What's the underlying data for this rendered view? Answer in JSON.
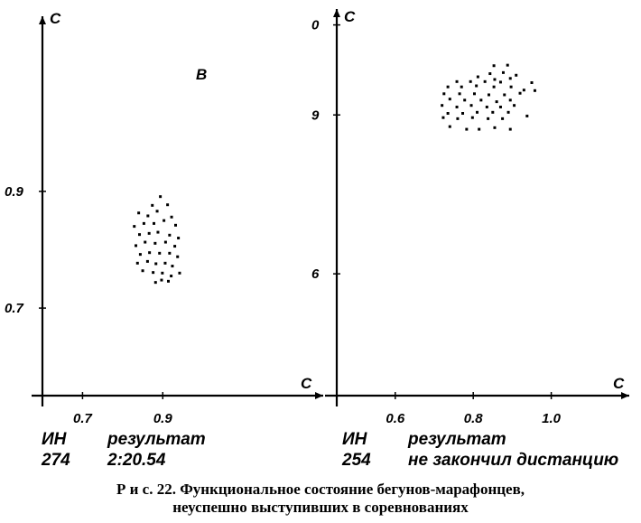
{
  "chart_data": [
    {
      "type": "scatter",
      "panel": "B",
      "xlabel": "C",
      "ylabel": "C",
      "xticks": [
        "0.7",
        "0.9"
      ],
      "yticks": [
        "0.7",
        "0.9"
      ],
      "xlim": [
        0.6,
        1.3
      ],
      "ylim": [
        0.55,
        1.2
      ],
      "points": [
        [
          0.874,
          0.876
        ],
        [
          0.894,
          0.891
        ],
        [
          0.912,
          0.877
        ],
        [
          0.84,
          0.863
        ],
        [
          0.863,
          0.858
        ],
        [
          0.886,
          0.866
        ],
        [
          0.922,
          0.856
        ],
        [
          0.829,
          0.84
        ],
        [
          0.853,
          0.845
        ],
        [
          0.878,
          0.845
        ],
        [
          0.903,
          0.85
        ],
        [
          0.932,
          0.842
        ],
        [
          0.842,
          0.826
        ],
        [
          0.866,
          0.828
        ],
        [
          0.888,
          0.83
        ],
        [
          0.917,
          0.825
        ],
        [
          0.939,
          0.82
        ],
        [
          0.833,
          0.807
        ],
        [
          0.856,
          0.813
        ],
        [
          0.881,
          0.811
        ],
        [
          0.907,
          0.813
        ],
        [
          0.93,
          0.806
        ],
        [
          0.844,
          0.792
        ],
        [
          0.867,
          0.795
        ],
        [
          0.892,
          0.794
        ],
        [
          0.917,
          0.794
        ],
        [
          0.937,
          0.788
        ],
        [
          0.837,
          0.777
        ],
        [
          0.862,
          0.78
        ],
        [
          0.883,
          0.776
        ],
        [
          0.906,
          0.777
        ],
        [
          0.924,
          0.772
        ],
        [
          0.85,
          0.764
        ],
        [
          0.876,
          0.761
        ],
        [
          0.899,
          0.76
        ],
        [
          0.921,
          0.755
        ],
        [
          0.942,
          0.76
        ],
        [
          0.882,
          0.744
        ],
        [
          0.897,
          0.748
        ],
        [
          0.914,
          0.746
        ]
      ]
    },
    {
      "type": "scatter",
      "xlabel": "C",
      "ylabel": "C",
      "xticks": [
        "0.6",
        "0.8",
        "1.0"
      ],
      "yticks": [
        "6",
        "9",
        "0"
      ],
      "xlim": [
        0.45,
        1.2
      ],
      "ylim": [
        3.7,
        11.0
      ],
      "points": [
        [
          0.853,
          9.93
        ],
        [
          0.888,
          9.94
        ],
        [
          0.843,
          9.78
        ],
        [
          0.877,
          9.8
        ],
        [
          0.91,
          9.75
        ],
        [
          0.812,
          9.72
        ],
        [
          0.855,
          9.67
        ],
        [
          0.895,
          9.69
        ],
        [
          0.758,
          9.63
        ],
        [
          0.793,
          9.63
        ],
        [
          0.83,
          9.63
        ],
        [
          0.87,
          9.62
        ],
        [
          0.95,
          9.61
        ],
        [
          0.735,
          9.53
        ],
        [
          0.77,
          9.53
        ],
        [
          0.808,
          9.55
        ],
        [
          0.853,
          9.53
        ],
        [
          0.897,
          9.53
        ],
        [
          0.93,
          9.47
        ],
        [
          0.958,
          9.46
        ],
        [
          0.725,
          9.4
        ],
        [
          0.765,
          9.4
        ],
        [
          0.803,
          9.4
        ],
        [
          0.84,
          9.38
        ],
        [
          0.88,
          9.38
        ],
        [
          0.92,
          9.41
        ],
        [
          0.74,
          9.3
        ],
        [
          0.778,
          9.28
        ],
        [
          0.82,
          9.28
        ],
        [
          0.86,
          9.25
        ],
        [
          0.895,
          9.28
        ],
        [
          0.72,
          9.18
        ],
        [
          0.758,
          9.15
        ],
        [
          0.795,
          9.18
        ],
        [
          0.835,
          9.15
        ],
        [
          0.87,
          9.15
        ],
        [
          0.905,
          9.18
        ],
        [
          0.735,
          9.03
        ],
        [
          0.773,
          9.03
        ],
        [
          0.81,
          9.05
        ],
        [
          0.85,
          9.05
        ],
        [
          0.89,
          9.05
        ],
        [
          0.938,
          8.98
        ],
        [
          0.723,
          8.95
        ],
        [
          0.76,
          8.93
        ],
        [
          0.798,
          8.95
        ],
        [
          0.838,
          8.93
        ],
        [
          0.875,
          8.93
        ],
        [
          0.74,
          8.78
        ],
        [
          0.783,
          8.73
        ],
        [
          0.815,
          8.73
        ],
        [
          0.855,
          8.76
        ],
        [
          0.895,
          8.73
        ]
      ]
    }
  ],
  "info": {
    "left": {
      "ih_label": "ИН",
      "ih_value": "274",
      "result_label": "результат",
      "result_value": "2:20.54"
    },
    "right": {
      "ih_label": "ИН",
      "ih_value": "254",
      "result_label": "результат",
      "result_value": "не закончил дистанцию"
    }
  },
  "caption": {
    "line1": "Р и с.  22.  Функциональное состояние бегунов-марафонцев,",
    "line2": "неуспешно выступивших в соревнованиях"
  }
}
